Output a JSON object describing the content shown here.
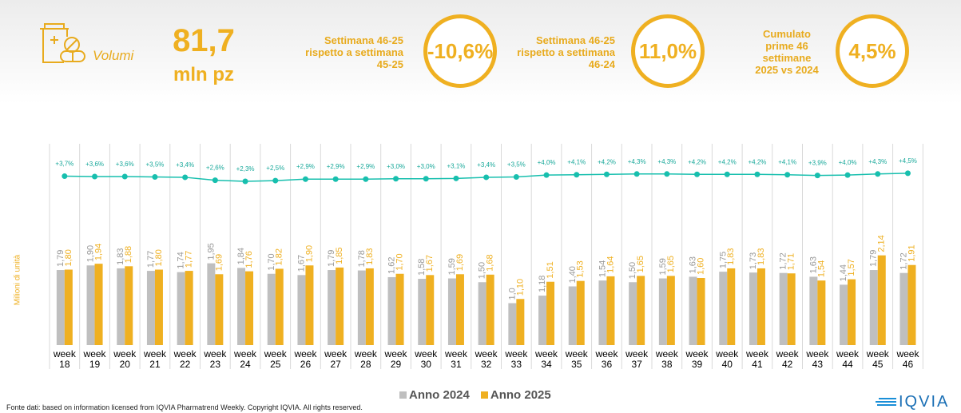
{
  "header": {
    "volumi_label": "Volumi",
    "total_value": "81,7",
    "total_unit": "mln pz",
    "kpis": [
      {
        "label": "Settimana 46-25 rispetto a settimana 45-25",
        "value": "-10,6%"
      },
      {
        "label": "Settimana 46-25 rispetto a settimana 46-24",
        "value": "11,0%"
      },
      {
        "label": "Cumulato prime 46 settimane 2025 vs 2024",
        "value": "4,5%"
      }
    ]
  },
  "chart_data": {
    "type": "bar",
    "ylabel": "Milioni di unità",
    "categories": [
      "week 18",
      "week 19",
      "week 20",
      "week 21",
      "week 22",
      "week 23",
      "week 24",
      "week 25",
      "week 26",
      "week 27",
      "week 28",
      "week 29",
      "week 30",
      "week 31",
      "week 32",
      "week 33",
      "week 34",
      "week 35",
      "week 36",
      "week 37",
      "week 38",
      "week 39",
      "week 40",
      "week 41",
      "week 42",
      "week 43",
      "week 44",
      "week 45",
      "week 46"
    ],
    "series": [
      {
        "name": "Anno 2024",
        "color": "#bfbfbf",
        "values": [
          1.79,
          1.9,
          1.83,
          1.77,
          1.74,
          1.95,
          1.84,
          1.7,
          1.67,
          1.79,
          1.78,
          1.62,
          1.58,
          1.59,
          1.5,
          1.0,
          1.18,
          1.4,
          1.54,
          1.5,
          1.59,
          1.63,
          1.75,
          1.73,
          1.72,
          1.63,
          1.44,
          1.79,
          1.72
        ],
        "labels": [
          "1,79",
          "1,90",
          "1,83",
          "1,77",
          "1,74",
          "1,95",
          "1,84",
          "1,70",
          "1,67",
          "1,79",
          "1,78",
          "1,62",
          "1,58",
          "1,59",
          "1,50",
          "1,0",
          "1,18",
          "1,40",
          "1,54",
          "1,50",
          "1,59",
          "1,63",
          "1,75",
          "1,73",
          "1,72",
          "1,63",
          "1,44",
          "1,79",
          "1,72"
        ]
      },
      {
        "name": "Anno 2025",
        "color": "#efb021",
        "values": [
          1.8,
          1.94,
          1.88,
          1.8,
          1.77,
          1.69,
          1.76,
          1.82,
          1.9,
          1.85,
          1.83,
          1.7,
          1.67,
          1.69,
          1.68,
          1.1,
          1.51,
          1.53,
          1.64,
          1.65,
          1.65,
          1.6,
          1.83,
          1.83,
          1.71,
          1.54,
          1.57,
          2.14,
          1.91
        ],
        "labels": [
          "1,80",
          "1,94",
          "1,88",
          "1,80",
          "1,77",
          "1,69",
          "1,76",
          "1,82",
          "1,90",
          "1,85",
          "1,83",
          "1,70",
          "1,67",
          "1,69",
          "1,68",
          "1,10",
          "1,51",
          "1,53",
          "1,64",
          "1,65",
          "1,65",
          "1,60",
          "1,83",
          "1,83",
          "1,71",
          "1,54",
          "1,57",
          "2,14",
          "1,91"
        ]
      }
    ],
    "cumulative_growth": {
      "color": "#17bfae",
      "values": [
        3.7,
        3.6,
        3.6,
        3.5,
        3.4,
        2.6,
        2.3,
        2.5,
        2.9,
        2.9,
        2.9,
        3.0,
        3.0,
        3.1,
        3.4,
        3.5,
        4.0,
        4.1,
        4.2,
        4.3,
        4.3,
        4.2,
        4.2,
        4.2,
        4.1,
        3.9,
        4.0,
        4.3,
        4.5
      ],
      "labels": [
        "+3,7%",
        "+3,6%",
        "+3,6%",
        "+3,5%",
        "+3,4%",
        "+2,6%",
        "+2,3%",
        "+2,5%",
        "+2,9%",
        "+2,9%",
        "+2,9%",
        "+3,0%",
        "+3,0%",
        "+3,1%",
        "+3,4%",
        "+3,5%",
        "+4,0%",
        "+4,1%",
        "+4,2%",
        "+4,3%",
        "+4,3%",
        "+4,2%",
        "+4,2%",
        "+4,2%",
        "+4,1%",
        "+3,9%",
        "+4,0%",
        "+4,3%",
        "+4,5%"
      ]
    },
    "legend": "bottom"
  },
  "footer": {
    "source": "Fonte dati: based on information licensed from IQVIA Pharmatrend Weekly. Copyright IQVIA. All rights reserved.",
    "logo": "IQVIA"
  }
}
